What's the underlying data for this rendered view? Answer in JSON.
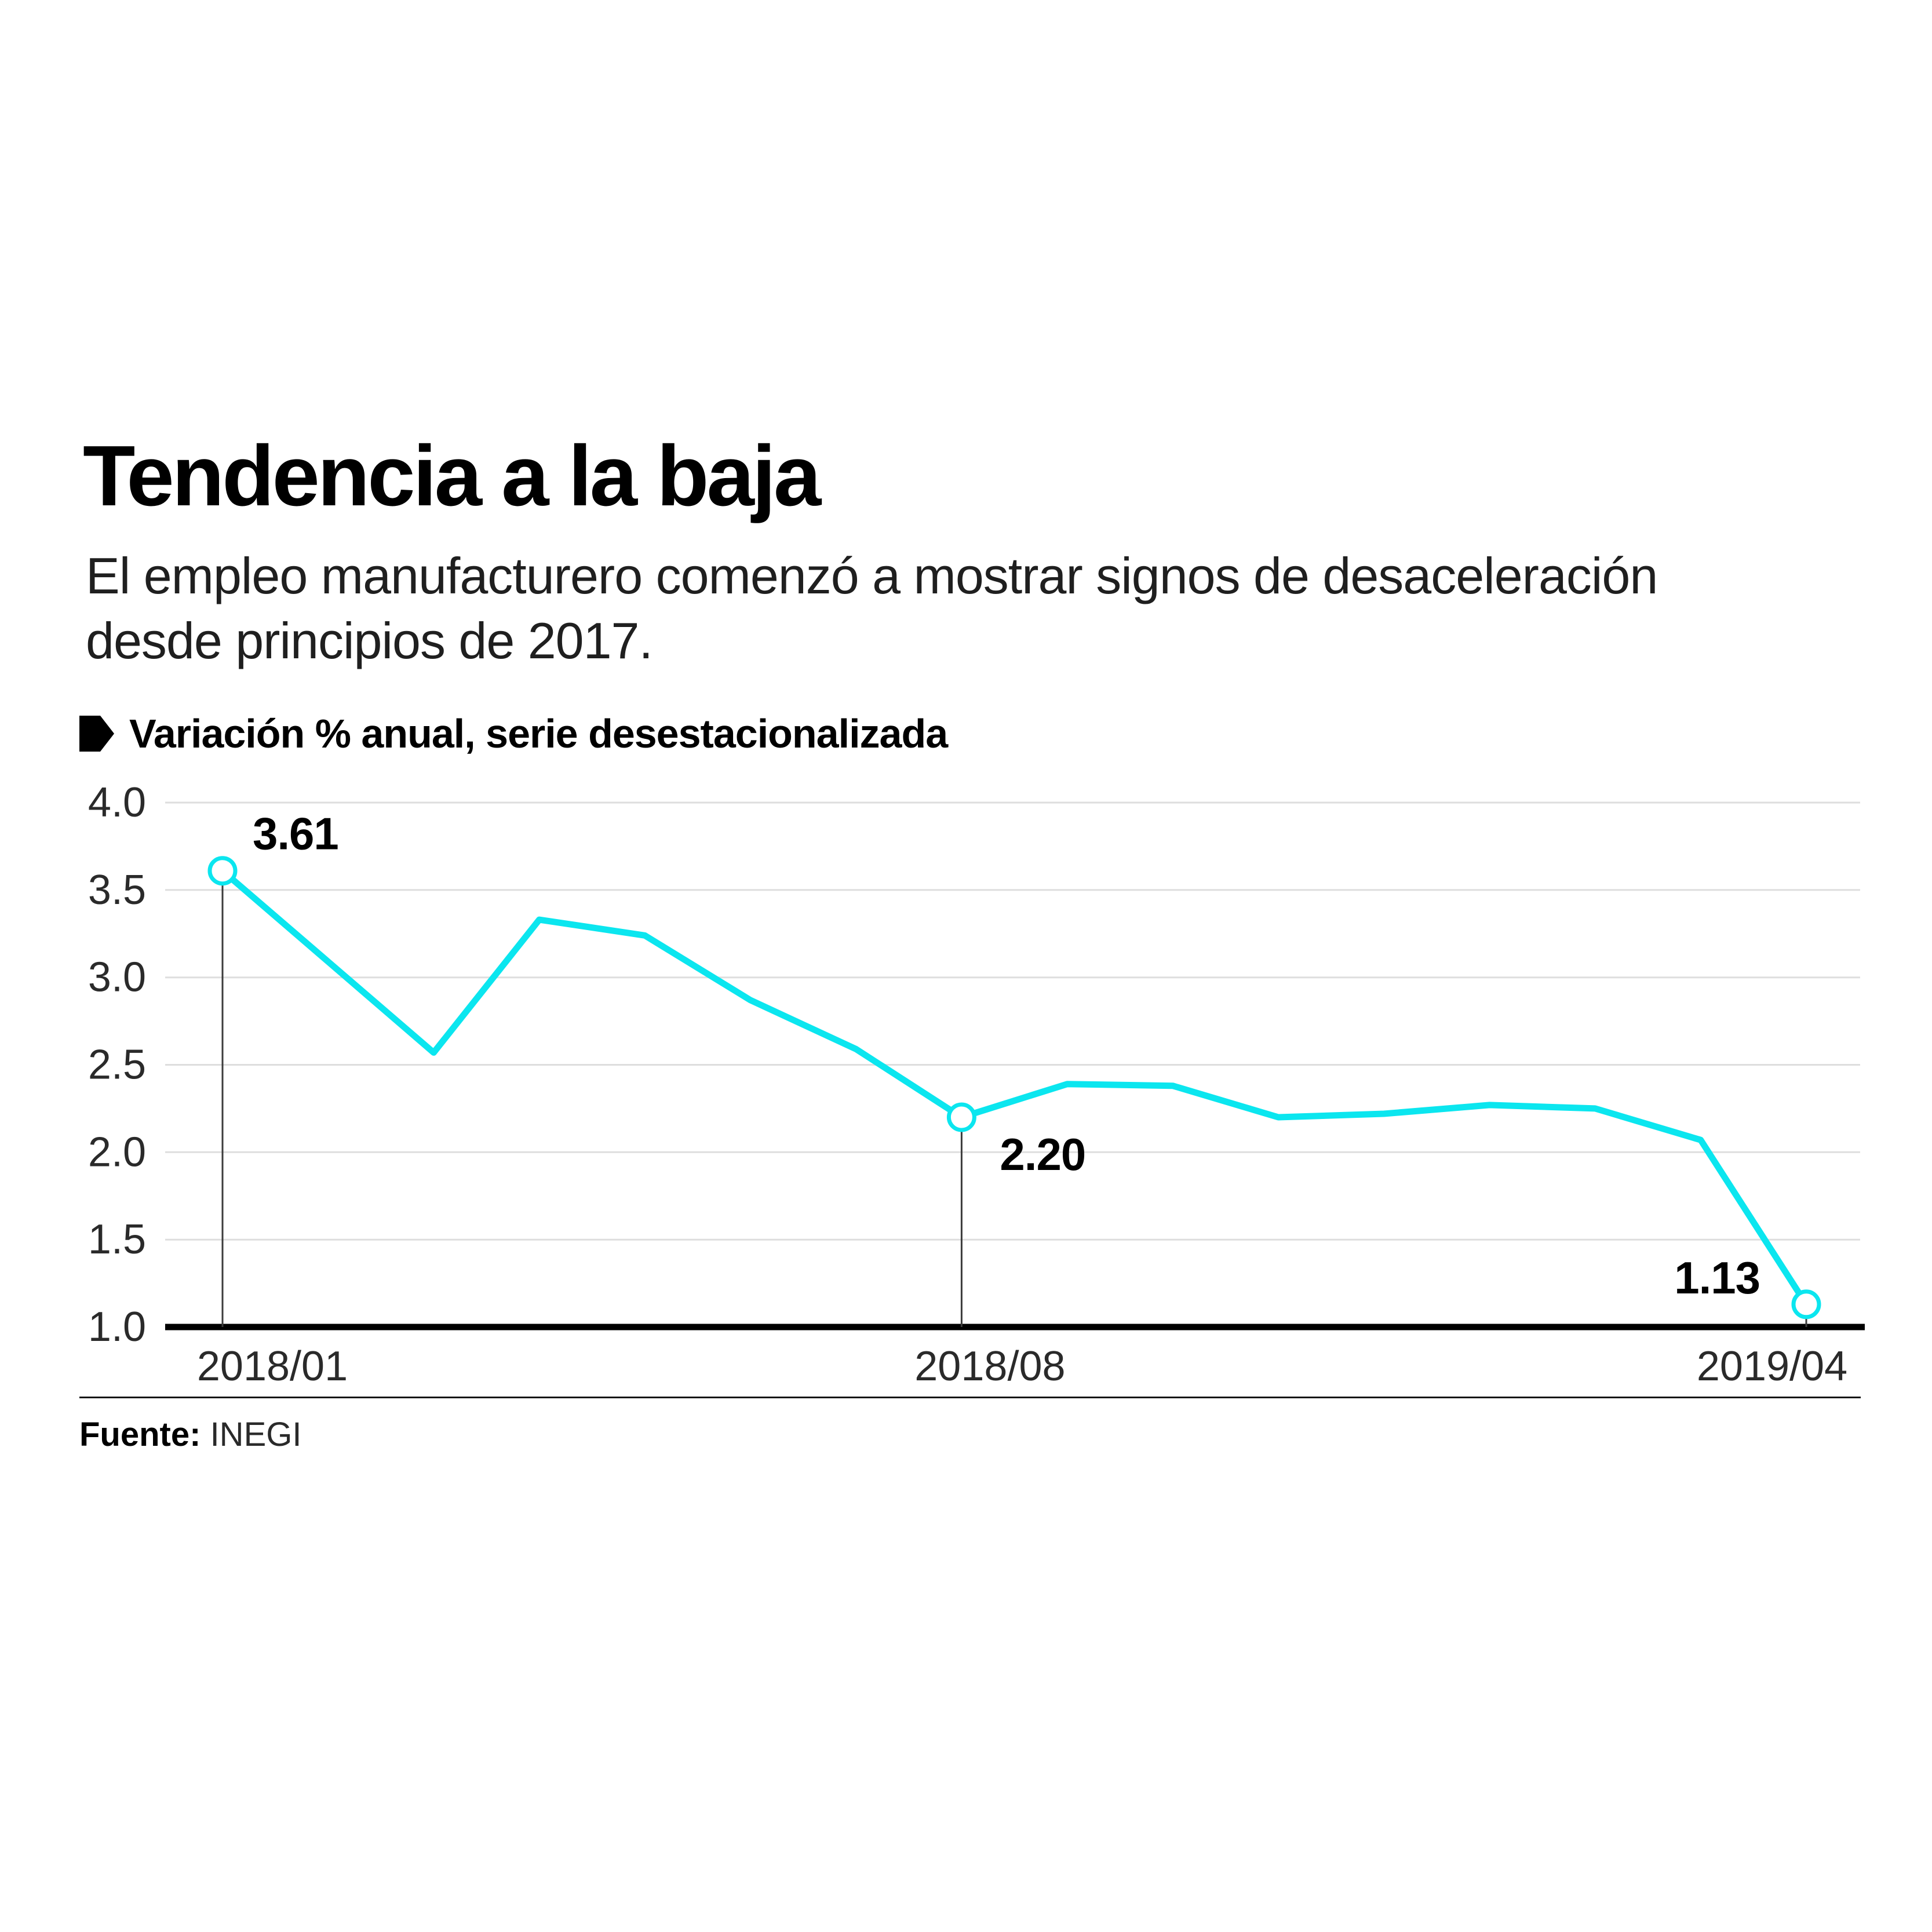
{
  "header": {
    "title": "Tendencia a la baja",
    "subtitle_line1": "El empleo manufacturero comenzó a mostrar signos de desaceleración",
    "subtitle_line2": "desde principios de 2017."
  },
  "legend": {
    "label": "Variación % anual, serie desestacionalizada",
    "marker_color": "#000000"
  },
  "footer": {
    "source_label": "Fuente:",
    "source_value": "INEGI"
  },
  "chart_data": {
    "type": "line",
    "title": "Tendencia a la baja",
    "legend": "Variación % anual, serie desestacionalizada",
    "x": [
      "2018/01",
      "2018/02",
      "2018/03",
      "2018/04",
      "2018/05",
      "2018/06",
      "2018/07",
      "2018/08",
      "2018/09",
      "2018/10",
      "2018/11",
      "2018/12",
      "2019/01",
      "2019/02",
      "2019/03",
      "2019/04"
    ],
    "values": [
      3.61,
      3.09,
      2.57,
      3.33,
      3.24,
      2.87,
      2.59,
      2.2,
      2.39,
      2.38,
      2.2,
      2.22,
      2.27,
      2.25,
      2.07,
      1.13
    ],
    "ylim": [
      1.0,
      4.0
    ],
    "y_ticks": [
      {
        "value": 4.0,
        "label": "4.0"
      },
      {
        "value": 3.5,
        "label": "3.5"
      },
      {
        "value": 3.0,
        "label": "3.0"
      },
      {
        "value": 2.5,
        "label": "2.5"
      },
      {
        "value": 2.0,
        "label": "2.0"
      },
      {
        "value": 1.5,
        "label": "1.5"
      },
      {
        "value": 1.0,
        "label": "1.0"
      }
    ],
    "annotations": [
      {
        "index": 0,
        "x": "2018/01",
        "value": 3.61,
        "label": "3.61"
      },
      {
        "index": 7,
        "x": "2018/08",
        "value": 2.2,
        "label": "2.20"
      },
      {
        "index": 15,
        "x": "2019/04",
        "value": 1.13,
        "label": "1.13"
      }
    ],
    "x_tick_labels": [
      "2018/01",
      "2018/08",
      "2019/04"
    ],
    "grid": true,
    "line_color": "#0BE6EF",
    "grid_color": "#DEDEDE",
    "axis_color": "#000000",
    "callout_color": "#3c3c3c"
  }
}
